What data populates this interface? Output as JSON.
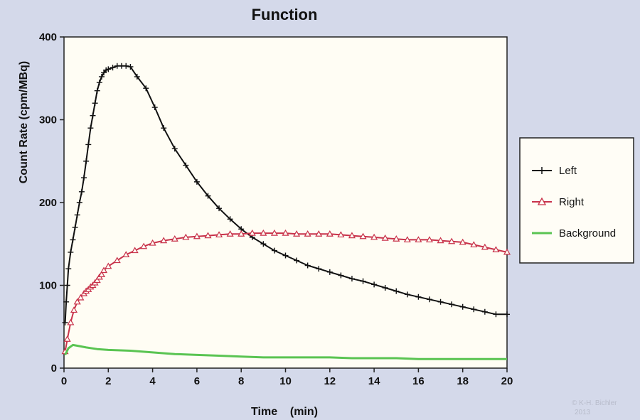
{
  "chart_data": {
    "type": "line",
    "title": "Function",
    "xlabel": "Time    (min)",
    "ylabel": "Count Rate (cpm/MBq)",
    "xlim": [
      0,
      20
    ],
    "ylim": [
      0,
      400
    ],
    "xticks": [
      0,
      2,
      4,
      6,
      8,
      10,
      12,
      14,
      16,
      18,
      20
    ],
    "yticks": [
      0,
      100,
      200,
      300,
      400
    ],
    "grid": false,
    "legend_position": "right",
    "series": [
      {
        "name": "Left",
        "color": "#111111",
        "marker": "plus",
        "x": [
          0.05,
          0.1,
          0.15,
          0.2,
          0.3,
          0.4,
          0.5,
          0.6,
          0.7,
          0.8,
          0.9,
          1.0,
          1.1,
          1.2,
          1.3,
          1.4,
          1.5,
          1.6,
          1.7,
          1.8,
          1.9,
          2.0,
          2.2,
          2.4,
          2.6,
          2.8,
          3.0,
          3.3,
          3.7,
          4.1,
          4.5,
          5.0,
          5.5,
          6.0,
          6.5,
          7.0,
          7.5,
          8.0,
          8.5,
          9.0,
          9.5,
          10.0,
          10.5,
          11.0,
          11.5,
          12.0,
          12.5,
          13.0,
          13.5,
          14.0,
          14.5,
          15.0,
          15.5,
          16.0,
          16.5,
          17.0,
          17.5,
          18.0,
          18.5,
          19.0,
          19.5,
          20.0
        ],
        "y": [
          55,
          80,
          100,
          120,
          140,
          155,
          170,
          185,
          200,
          213,
          230,
          250,
          270,
          290,
          305,
          320,
          335,
          345,
          352,
          357,
          360,
          361,
          363,
          365,
          365,
          365,
          364,
          352,
          338,
          315,
          290,
          265,
          245,
          225,
          208,
          193,
          180,
          168,
          158,
          150,
          142,
          136,
          130,
          124,
          120,
          116,
          112,
          108,
          105,
          101,
          97,
          93,
          89,
          86,
          83,
          80,
          77,
          74,
          71,
          68,
          65,
          65
        ]
      },
      {
        "name": "Right",
        "color": "#c8324a",
        "marker": "triangle",
        "x": [
          0.05,
          0.15,
          0.3,
          0.45,
          0.6,
          0.75,
          0.9,
          1.0,
          1.1,
          1.2,
          1.3,
          1.4,
          1.5,
          1.6,
          1.7,
          1.8,
          2.0,
          2.4,
          2.8,
          3.2,
          3.6,
          4.0,
          4.5,
          5.0,
          5.5,
          6.0,
          6.5,
          7.0,
          7.5,
          8.0,
          8.5,
          9.0,
          9.5,
          10.0,
          10.5,
          11.0,
          11.5,
          12.0,
          12.5,
          13.0,
          13.5,
          14.0,
          14.5,
          15.0,
          15.5,
          16.0,
          16.5,
          17.0,
          17.5,
          18.0,
          18.5,
          19.0,
          19.5,
          20.0
        ],
        "y": [
          20,
          35,
          55,
          70,
          80,
          85,
          90,
          93,
          95,
          98,
          100,
          103,
          106,
          110,
          113,
          118,
          123,
          130,
          137,
          142,
          147,
          151,
          154,
          156,
          158,
          159,
          160,
          161,
          162,
          162,
          163,
          163,
          163,
          163,
          162,
          162,
          162,
          162,
          161,
          160,
          159,
          158,
          157,
          156,
          155,
          155,
          155,
          154,
          153,
          152,
          149,
          146,
          143,
          140
        ]
      },
      {
        "name": "Background",
        "color": "#5ac452",
        "marker": "none",
        "x": [
          0.05,
          0.2,
          0.4,
          0.6,
          1.0,
          1.5,
          2.0,
          3.0,
          4.0,
          5.0,
          6.0,
          7.0,
          8.0,
          9.0,
          10.0,
          11.0,
          12.0,
          13.0,
          14.0,
          15.0,
          16.0,
          17.0,
          18.0,
          19.0,
          20.0
        ],
        "y": [
          16,
          24,
          28,
          27,
          25,
          23,
          22,
          21,
          19,
          17,
          16,
          15,
          14,
          13,
          13,
          13,
          13,
          12,
          12,
          12,
          11,
          11,
          11,
          11,
          11
        ]
      }
    ]
  },
  "watermark": [
    "© K-H. Bichler",
    "2013"
  ]
}
